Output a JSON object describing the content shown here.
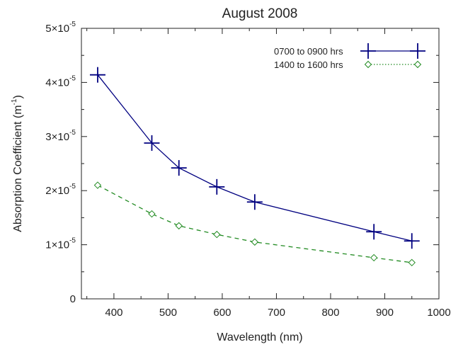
{
  "chart_data": {
    "type": "line",
    "title": "August 2008",
    "xlabel": "Wavelength (nm)",
    "ylabel": "Absorption Coefficient (m",
    "ylabel_superscript": "-1",
    "ylabel_close": ")",
    "xlim": [
      340,
      1000
    ],
    "ylim": [
      0,
      5e-05
    ],
    "x_ticks": [
      400,
      500,
      600,
      700,
      800,
      900,
      1000
    ],
    "x_tick_labels": [
      "400",
      "500",
      "600",
      "700",
      "800",
      "900",
      "1000"
    ],
    "y_ticks": [
      0,
      1e-05,
      2e-05,
      3e-05,
      4e-05,
      5e-05
    ],
    "y_tick_labels": [
      {
        "mantissa": "0",
        "exponent": ""
      },
      {
        "mantissa": "1×10",
        "exponent": "-5"
      },
      {
        "mantissa": "2×10",
        "exponent": "-5"
      },
      {
        "mantissa": "3×10",
        "exponent": "-5"
      },
      {
        "mantissa": "4×10",
        "exponent": "-5"
      },
      {
        "mantissa": "5×10",
        "exponent": "-5"
      }
    ],
    "grid": false,
    "legend_position": "top-right",
    "series": [
      {
        "name": "0700 to 0900 hrs",
        "color": "#000080",
        "line_style": "solid",
        "marker": "plus",
        "x": [
          370,
          470,
          520,
          590,
          660,
          880,
          950
        ],
        "y": [
          4.14e-05,
          2.88e-05,
          2.42e-05,
          2.07e-05,
          1.79e-05,
          1.24e-05,
          1.07e-05
        ]
      },
      {
        "name": "1400 to 1600 hrs",
        "color": "#228b22",
        "line_style": "dashed",
        "legend_line_style": "dotted",
        "marker": "diamond",
        "x": [
          370,
          470,
          520,
          590,
          660,
          880,
          950
        ],
        "y": [
          2.1e-05,
          1.57e-05,
          1.35e-05,
          1.19e-05,
          1.05e-05,
          7.6e-06,
          6.7e-06
        ]
      }
    ]
  }
}
